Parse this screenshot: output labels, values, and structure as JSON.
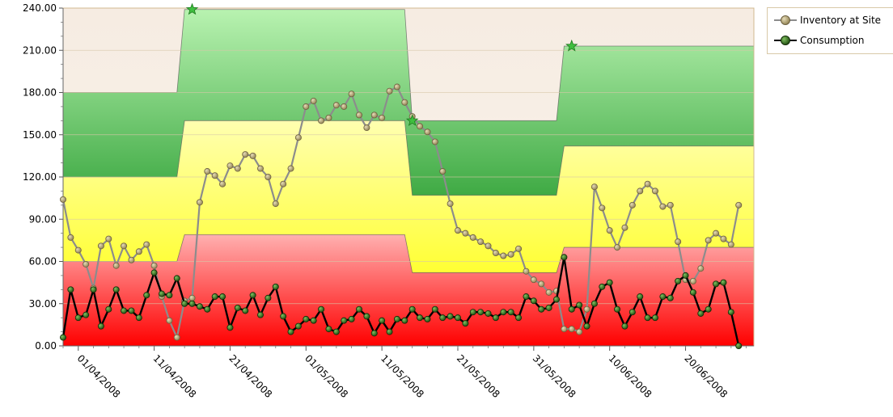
{
  "chart_data": {
    "type": "line",
    "title": "",
    "xlabel": "",
    "ylabel": "",
    "ylim": [
      0,
      240
    ],
    "y_ticks": [
      "0.00",
      "30.00",
      "60.00",
      "90.00",
      "120.00",
      "150.00",
      "180.00",
      "210.00",
      "240.00"
    ],
    "x_range": [
      "2008-03-30",
      "2008-06-29"
    ],
    "x_ticks": [
      "01/04/2008",
      "11/04/2008",
      "21/04/2008",
      "01/05/2008",
      "11/05/2008",
      "21/05/2008",
      "31/05/2008",
      "10/06/2008",
      "20/06/2008"
    ],
    "x_tick_dates": [
      "2008-04-01",
      "2008-04-11",
      "2008-04-21",
      "2008-05-01",
      "2008-05-11",
      "2008-05-21",
      "2008-05-31",
      "2008-06-10",
      "2008-06-20"
    ],
    "grid": "horizontal",
    "legend_position": "top-right",
    "colors": {
      "inventory_line": "#8c8c8c",
      "inventory_marker": "#b0a070",
      "consumption_line": "#000000",
      "consumption_marker": "#3a6b1f",
      "band_red": "#ff2020",
      "band_yellow": "#ffff40",
      "band_green": "#44b544",
      "band_cream": "#f4ece0",
      "star": "#3fbf3f"
    },
    "bands": {
      "x": [
        "2008-03-30",
        "2008-04-14",
        "2008-04-15",
        "2008-05-14",
        "2008-05-15",
        "2008-06-03",
        "2008-06-04",
        "2008-06-29"
      ],
      "red_top": [
        60,
        60,
        79,
        79,
        52,
        52,
        70,
        70
      ],
      "yellow_top": [
        120,
        120,
        160,
        160,
        107,
        107,
        142,
        142
      ],
      "green_top": [
        180,
        180,
        239,
        239,
        160,
        160,
        213,
        213
      ]
    },
    "stars": [
      {
        "x": "2008-04-16",
        "y": 239
      },
      {
        "x": "2008-05-15",
        "y": 160
      },
      {
        "x": "2008-06-05",
        "y": 213
      }
    ],
    "series": [
      {
        "name": "Inventory at Site",
        "x_start": "2008-03-30",
        "values": [
          104,
          77,
          68,
          58,
          41,
          71,
          76,
          57,
          71,
          61,
          67,
          72,
          57,
          35,
          18,
          6,
          32,
          34,
          102,
          124,
          121,
          115,
          128,
          126,
          136,
          135,
          126,
          120,
          101,
          115,
          126,
          148,
          170,
          174,
          160,
          162,
          171,
          170,
          179,
          164,
          155,
          164,
          162,
          181,
          184,
          173,
          163,
          156,
          152,
          145,
          124,
          101,
          82,
          80,
          77,
          74,
          71,
          66,
          64,
          65,
          69,
          53,
          47,
          44,
          38,
          39,
          12,
          12,
          10,
          26,
          113,
          98,
          82,
          70,
          84,
          100,
          110,
          115,
          110,
          99,
          100,
          74,
          47,
          46,
          55,
          75,
          80,
          76,
          72,
          100
        ]
      },
      {
        "name": "Consumption",
        "x_start": "2008-03-30",
        "values": [
          6,
          40,
          20,
          22,
          40,
          14,
          26,
          40,
          25,
          25,
          20,
          36,
          52,
          37,
          36,
          48,
          30,
          30,
          28,
          26,
          35,
          35,
          13,
          27,
          25,
          36,
          22,
          34,
          42,
          21,
          10,
          14,
          19,
          18,
          26,
          12,
          10,
          18,
          19,
          26,
          21,
          9,
          18,
          10,
          19,
          18,
          26,
          20,
          19,
          26,
          20,
          21,
          20,
          16,
          24,
          24,
          23,
          20,
          24,
          24,
          20,
          35,
          32,
          26,
          27,
          33,
          63,
          26,
          29,
          14,
          30,
          42,
          45,
          26,
          14,
          24,
          35,
          20,
          20,
          35,
          34,
          46,
          50,
          38,
          23,
          26,
          44,
          45,
          24,
          0
        ]
      }
    ]
  }
}
